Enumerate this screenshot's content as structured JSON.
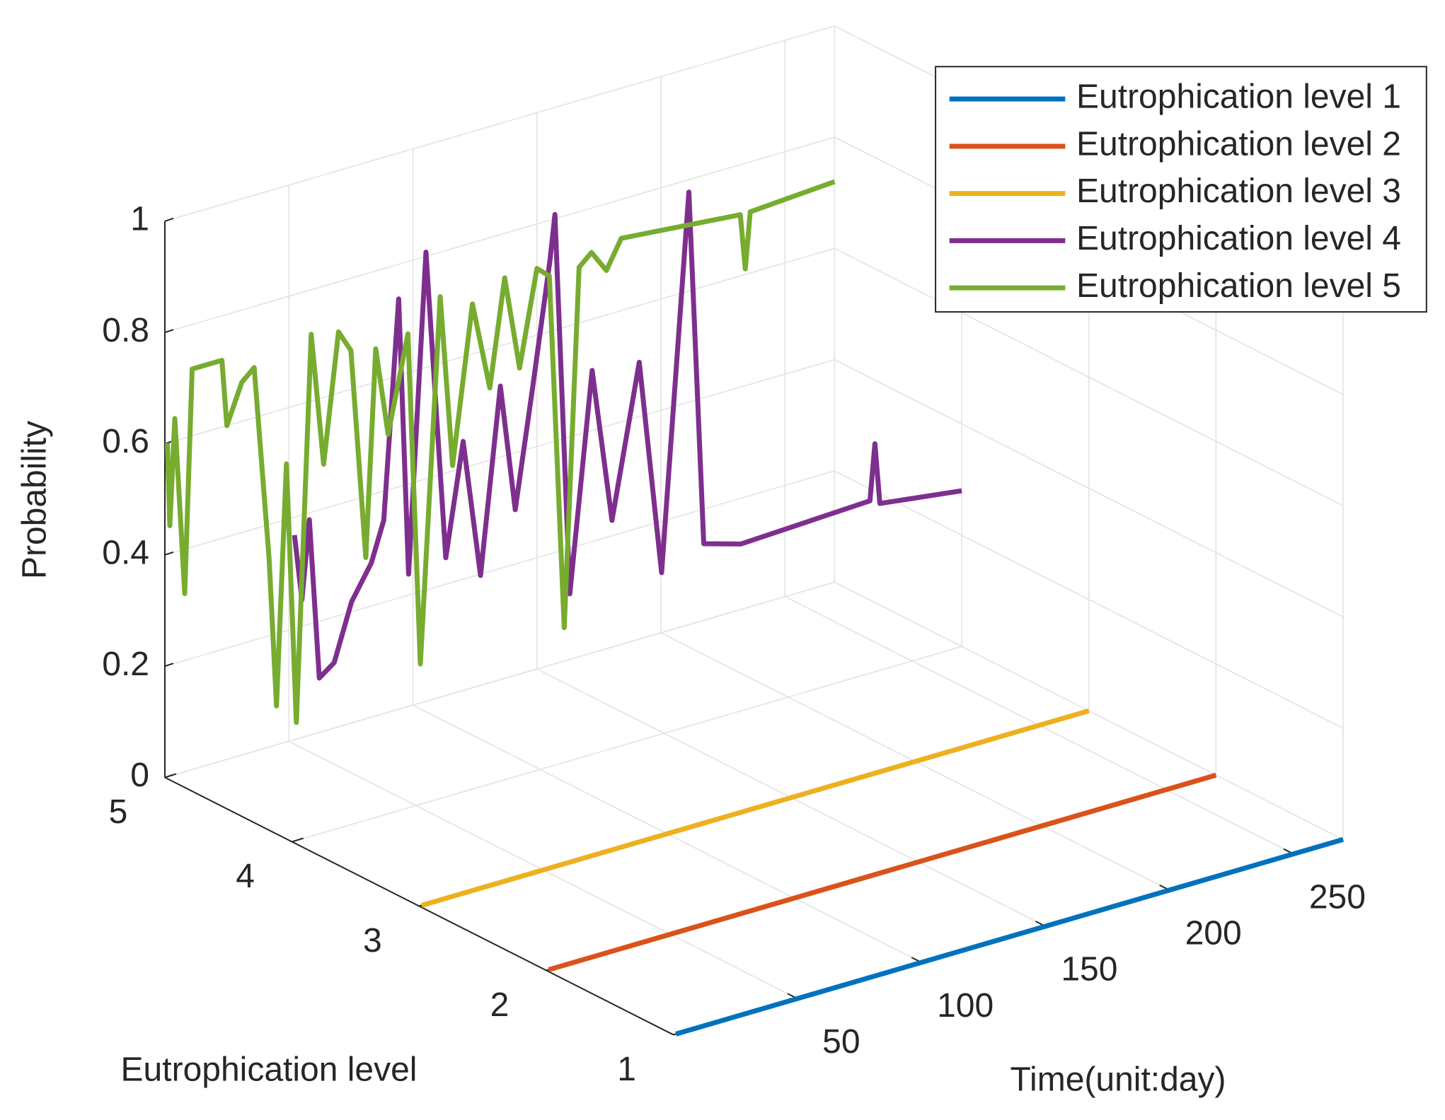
{
  "chart_data": {
    "type": "line3d",
    "xlabel": "Time(unit:day)",
    "ylabel": "Eutrophication level",
    "zlabel": "Probability",
    "xlim": [
      0,
      270
    ],
    "xticks": [
      50,
      100,
      150,
      200,
      250
    ],
    "ylim": [
      1,
      5
    ],
    "yticks": [
      1,
      2,
      3,
      4,
      5
    ],
    "zlim": [
      0,
      1
    ],
    "zticks": [
      0,
      0.2,
      0.4,
      0.6,
      0.8,
      1
    ],
    "grid": true,
    "legend": "upper right",
    "series": [
      {
        "name": "Eutrophication level 1",
        "color": "#0072BD",
        "y": 1,
        "x": [
          1,
          270
        ],
        "values": [
          0,
          0
        ]
      },
      {
        "name": "Eutrophication level 2",
        "color": "#D95319",
        "y": 2,
        "x": [
          1,
          270
        ],
        "values": [
          0,
          0
        ]
      },
      {
        "name": "Eutrophication level 3",
        "color": "#EDB120",
        "y": 3,
        "x": [
          1,
          270
        ],
        "values": [
          0,
          0
        ]
      },
      {
        "name": "Eutrophication level 4",
        "color": "#7E2F8E",
        "y": 4,
        "x": [
          1,
          4,
          7,
          11,
          17,
          24,
          32,
          37,
          43,
          47,
          54,
          62,
          69,
          76,
          84,
          90,
          97,
          104,
          106,
          112,
          121,
          129,
          140,
          149,
          160,
          166,
          181,
          233,
          235,
          237,
          270
        ],
        "values": [
          0.55,
          0.43,
          0.57,
          0.28,
          0.3,
          0.4,
          0.46,
          0.53,
          0.92,
          0.42,
          0.99,
          0.43,
          0.63,
          0.38,
          0.71,
          0.48,
          0.69,
          0.91,
          0.99,
          0.3,
          0.69,
          0.41,
          0.68,
          0.29,
          0.96,
          0.32,
          0.3,
          0.31,
          0.41,
          0.3,
          0.28
        ]
      },
      {
        "name": "Eutrophication level 5",
        "color": "#77AC30",
        "y": 5,
        "x": [
          1,
          2,
          4,
          8,
          11,
          23,
          25,
          31,
          36,
          42,
          45,
          49,
          53,
          59,
          64,
          70,
          75,
          81,
          85,
          90,
          98,
          103,
          111,
          116,
          124,
          131,
          137,
          143,
          150,
          155,
          161,
          167,
          172,
          178,
          184,
          232,
          234,
          236,
          270
        ],
        "values": [
          0.6,
          0.45,
          0.64,
          0.32,
          0.72,
          0.72,
          0.6,
          0.67,
          0.69,
          0.34,
          0.07,
          0.5,
          0.03,
          0.72,
          0.48,
          0.71,
          0.67,
          0.29,
          0.66,
          0.5,
          0.67,
          0.07,
          0.72,
          0.41,
          0.69,
          0.53,
          0.72,
          0.55,
          0.72,
          0.7,
          0.06,
          0.7,
          0.72,
          0.68,
          0.73,
          0.71,
          0.61,
          0.71,
          0.72
        ]
      }
    ]
  }
}
